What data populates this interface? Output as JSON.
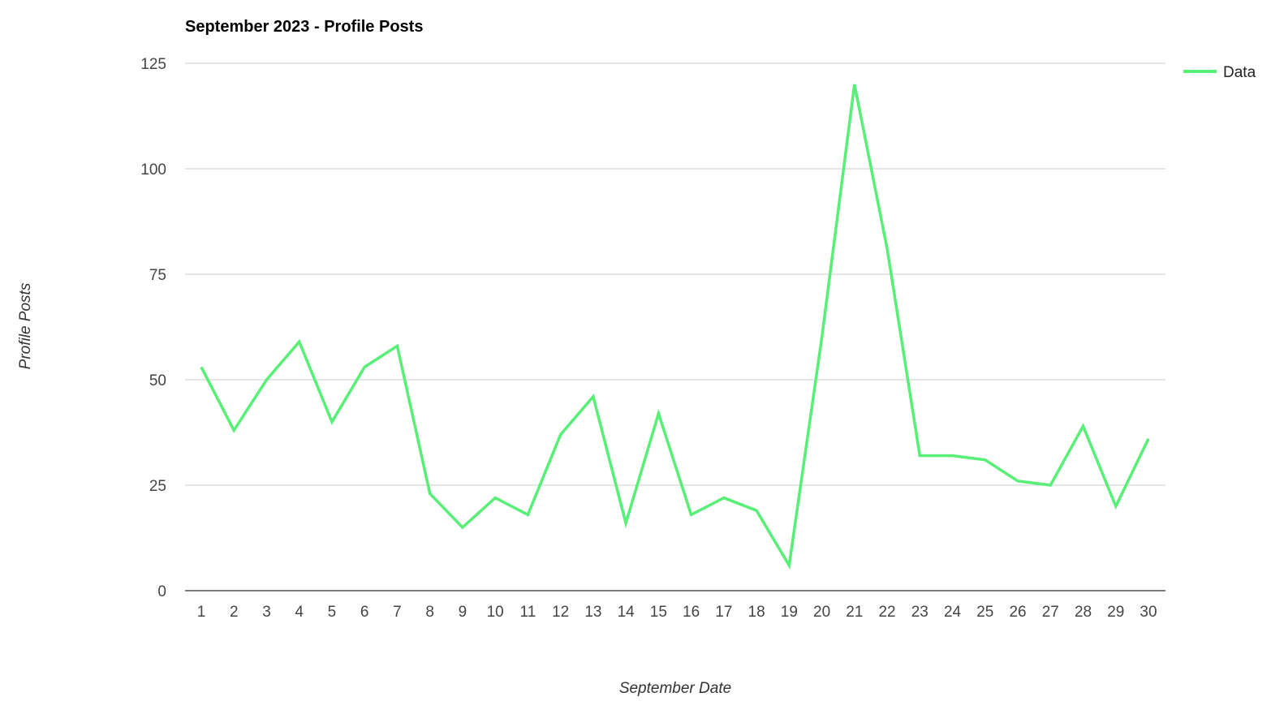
{
  "chart_data": {
    "type": "line",
    "title": "September 2023 - Profile Posts",
    "xlabel": "September Date",
    "ylabel": "Profile Posts",
    "categories": [
      "1",
      "2",
      "3",
      "4",
      "5",
      "6",
      "7",
      "8",
      "9",
      "10",
      "11",
      "12",
      "13",
      "14",
      "15",
      "16",
      "17",
      "18",
      "19",
      "20",
      "21",
      "22",
      "23",
      "24",
      "25",
      "26",
      "27",
      "28",
      "29",
      "30"
    ],
    "series": [
      {
        "name": "Data",
        "color": "#57ef76",
        "values": [
          53,
          38,
          50,
          59,
          40,
          53,
          58,
          23,
          15,
          22,
          18,
          37,
          46,
          16,
          42,
          18,
          22,
          19,
          6,
          60,
          120,
          81,
          32,
          32,
          31,
          26,
          25,
          39,
          20,
          36
        ]
      }
    ],
    "ylim": [
      0,
      125
    ],
    "yticks": [
      0,
      25,
      50,
      75,
      100,
      125
    ],
    "grid": true,
    "legend_position": "top-right"
  }
}
